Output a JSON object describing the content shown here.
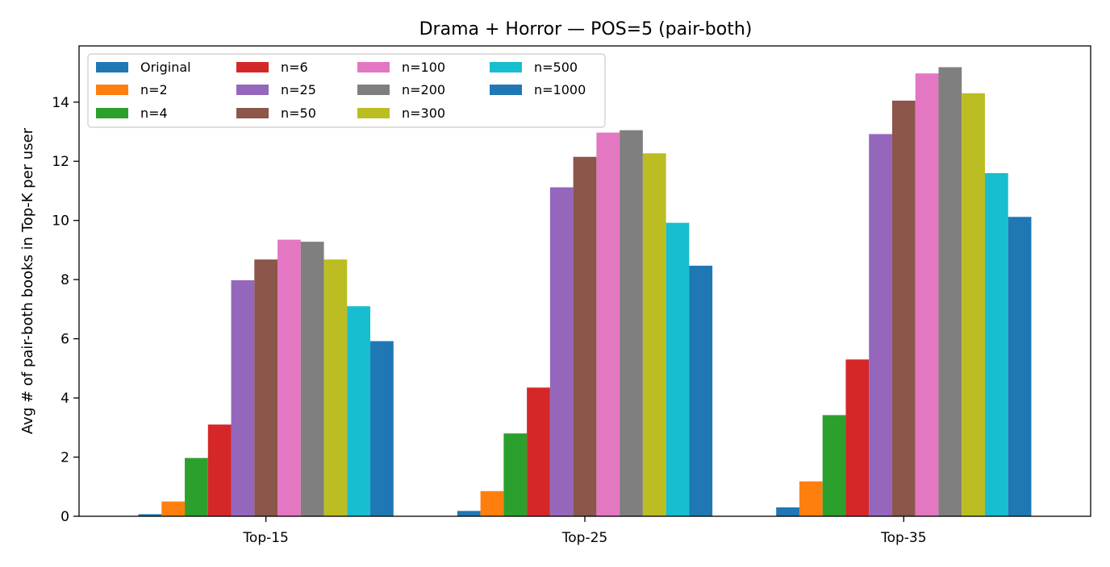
{
  "chart_data": {
    "type": "bar",
    "title": "Drama + Horror — POS=5 (pair-both)",
    "xlabel": "",
    "ylabel": "Avg # of pair-both books in Top-K per user",
    "categories": [
      "Top-15",
      "Top-25",
      "Top-35"
    ],
    "ylim": [
      0,
      15.9
    ],
    "yticks": [
      0,
      2,
      4,
      6,
      8,
      10,
      12,
      14
    ],
    "grid": false,
    "legend": "top-left",
    "legend_columns": 4,
    "series": [
      {
        "name": "Original",
        "color": "#1f77b4",
        "values": [
          0.07,
          0.18,
          0.3
        ]
      },
      {
        "name": "n=2",
        "color": "#ff7f0e",
        "values": [
          0.5,
          0.85,
          1.18
        ]
      },
      {
        "name": "n=4",
        "color": "#2ca02c",
        "values": [
          1.97,
          2.8,
          3.42
        ]
      },
      {
        "name": "n=6",
        "color": "#d62728",
        "values": [
          3.1,
          4.35,
          5.3
        ]
      },
      {
        "name": "n=25",
        "color": "#9467bd",
        "values": [
          7.98,
          11.12,
          12.92
        ]
      },
      {
        "name": "n=50",
        "color": "#8c564b",
        "values": [
          8.68,
          12.15,
          14.05
        ]
      },
      {
        "name": "n=100",
        "color": "#e377c2",
        "values": [
          9.35,
          12.97,
          14.97
        ]
      },
      {
        "name": "n=200",
        "color": "#7f7f7f",
        "values": [
          9.28,
          13.05,
          15.18
        ]
      },
      {
        "name": "n=300",
        "color": "#bcbd22",
        "values": [
          8.68,
          12.27,
          14.3
        ]
      },
      {
        "name": "n=500",
        "color": "#17becf",
        "values": [
          7.1,
          9.92,
          11.6
        ]
      },
      {
        "name": "n=1000",
        "color": "#1f77b4",
        "values": [
          5.92,
          8.47,
          10.12
        ]
      }
    ]
  }
}
